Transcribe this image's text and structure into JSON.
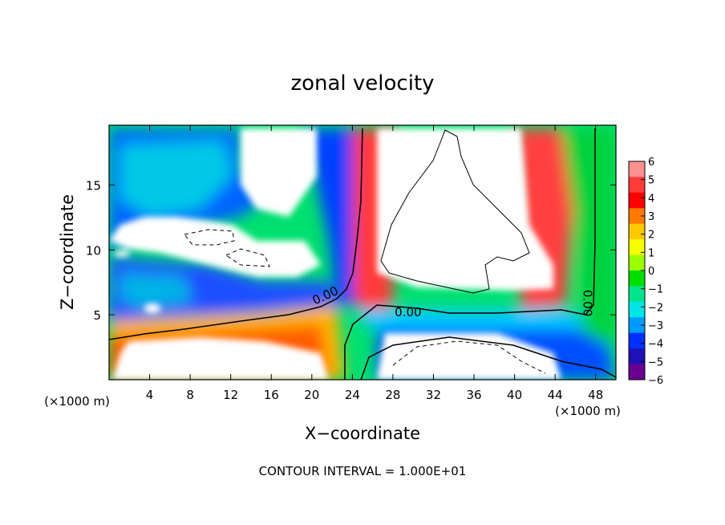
{
  "chart_data": {
    "type": "heatmap",
    "title": "zonal velocity",
    "xlabel": "X−coordinate",
    "ylabel": "Z−coordinate",
    "x_unit_label": "(×1000 m)",
    "y_unit_label": "(×1000 m)",
    "footer": "CONTOUR INTERVAL = 1.000E+01",
    "xlim": [
      0,
      50
    ],
    "ylim": [
      0,
      19.6
    ],
    "x_ticks": [
      4,
      8,
      12,
      16,
      20,
      24,
      28,
      32,
      36,
      40,
      44,
      48
    ],
    "x_tick_labels": [
      "4",
      "8",
      "12",
      "16",
      "20",
      "24",
      "28",
      "32",
      "36",
      "40",
      "44",
      "48"
    ],
    "y_ticks": [
      5,
      10,
      15
    ],
    "y_tick_labels": [
      "5",
      "10",
      "15"
    ],
    "colorbar": {
      "min": -6,
      "max": 6,
      "tick_values": [
        6,
        5,
        4,
        3,
        2,
        1,
        0,
        -1,
        -2,
        -3,
        -4,
        -5,
        -6
      ],
      "tick_labels": [
        "6",
        "5",
        "4",
        "3",
        "2",
        "1",
        "0",
        "−1",
        "−2",
        "−3",
        "−4",
        "−5",
        "−6"
      ],
      "colors": [
        "#ff9090",
        "#ff3a3a",
        "#ff0000",
        "#ff7a00",
        "#ffc800",
        "#f5ff00",
        "#9cff00",
        "#00dd00",
        "#00e58c",
        "#00e6e6",
        "#009bff",
        "#0030ff",
        "#2010b8",
        "#6a0090"
      ]
    },
    "contour_labels": [
      {
        "text": "0.00",
        "x": 21.5,
        "y": 6.2,
        "rotation": -25
      },
      {
        "text": "0.00",
        "x": 29.5,
        "y": 4.9,
        "rotation": 0
      },
      {
        "text": "0.00",
        "x": 46.8,
        "y": 5.9,
        "rotation": 90
      }
    ]
  }
}
